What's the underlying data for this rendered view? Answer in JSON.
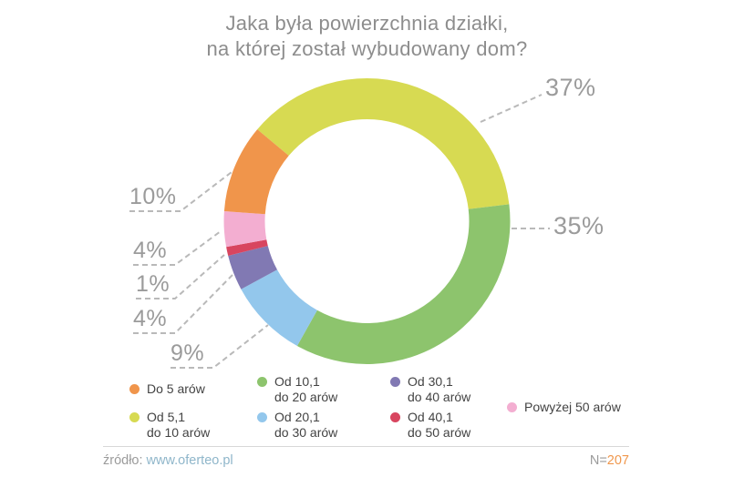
{
  "title": {
    "line1": "Jaka była powierzchnia działki,",
    "line2": "na której został wybudowany dom?"
  },
  "chart_data": {
    "type": "pie",
    "donut": true,
    "title": "Jaka była powierzchnia działki, na której został wybudowany dom?",
    "unit": "%",
    "start_angle_deg": -50,
    "legend_position": "bottom",
    "segments": [
      {
        "label": "Od 5,1 do 10 arów",
        "legend_label": "Od 5,1\ndo 10 arów",
        "value": 37,
        "color": "#d7da52"
      },
      {
        "label": "Od 10,1 do 20 arów",
        "legend_label": "Od 10,1\ndo 20 arów",
        "value": 35,
        "color": "#8dc46d"
      },
      {
        "label": "Od 20,1 do 30 arów",
        "legend_label": "Od 20,1\ndo 30 arów",
        "value": 9,
        "color": "#93c7ec"
      },
      {
        "label": "Od 30,1 do 40 arów",
        "legend_label": "Od 30,1\ndo 40 arów",
        "value": 4,
        "color": "#8179b3"
      },
      {
        "label": "Od 40,1 do 50 arów",
        "legend_label": "Od 40,1\ndo 50 arów",
        "value": 1,
        "color": "#d8455f"
      },
      {
        "label": "Powyżej 50 arów",
        "legend_label": "Powyżej 50 arów",
        "value": 4,
        "color": "#f3aed1"
      },
      {
        "label": "Do 5 arów",
        "legend_label": "Do 5 arów",
        "value": 10,
        "color": "#f0954b"
      }
    ],
    "legend_columns": [
      [
        6,
        0
      ],
      [
        1,
        2
      ],
      [
        3,
        4
      ],
      [
        5
      ]
    ]
  },
  "footer": {
    "source_label": "źródło:",
    "source_url": "www.oferteo.pl",
    "n_label": "N=",
    "n_value": "207"
  }
}
